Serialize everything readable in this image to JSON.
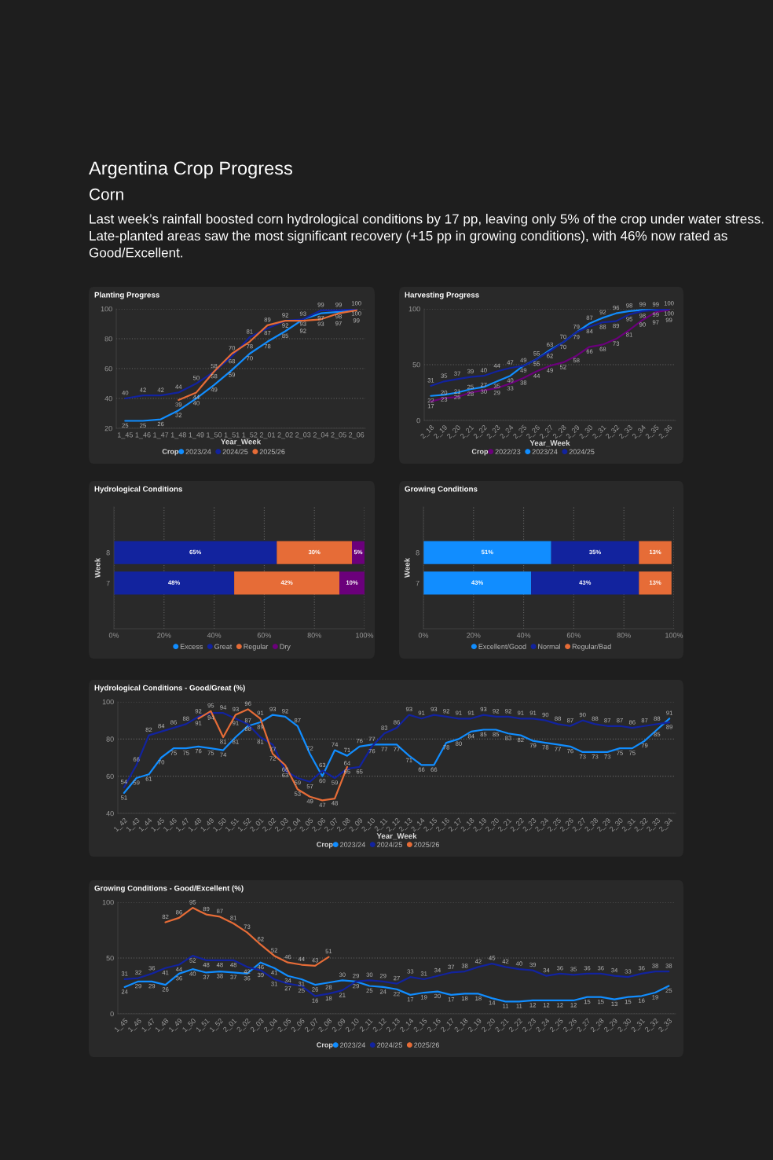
{
  "chart_data": [
    {
      "type": "other",
      "title": "Argentina Crop Progress",
      "subtitle": "Corn",
      "annotations": [
        "Last week’s rainfall boosted corn hydrological conditions by 17 pp, leaving only 5% of the crop under water stress. Late-planted areas saw the most significant recovery (+15 pp in growing conditions), with 46% now rated as Good/Excellent."
      ]
    },
    {
      "type": "line",
      "title": "Planting Progress",
      "xlabel": "Year_Week",
      "legend_title": "Crop",
      "legend": "bottom",
      "grid": "y",
      "data_labels": true,
      "ylim": [
        20,
        100
      ],
      "yticks": [
        20,
        40,
        60,
        80,
        100
      ],
      "categories": [
        "1_45",
        "1_46",
        "1_47",
        "1_48",
        "1_49",
        "1_50",
        "1_51",
        "1_52",
        "2_01",
        "2_02",
        "2_03",
        "2_04",
        "2_05",
        "2_06"
      ],
      "series": [
        {
          "name": "2023/24",
          "color": "#118dff",
          "values": [
            25,
            25,
            26,
            32,
            40,
            49,
            59,
            70,
            78,
            85,
            93,
            97,
            98,
            100
          ]
        },
        {
          "name": "2024/25",
          "color": "#12239e",
          "values": [
            40,
            42,
            42,
            44,
            50,
            58,
            68,
            81,
            87,
            92,
            93,
            99,
            99,
            100
          ]
        },
        {
          "name": "2025/26",
          "color": "#e66c37",
          "values": [
            null,
            null,
            null,
            39,
            44,
            58,
            70,
            78,
            89,
            92,
            92,
            93,
            97,
            99
          ]
        }
      ]
    },
    {
      "type": "line",
      "title": "Harvesting Progress",
      "xlabel": "Year_Week",
      "legend_title": "Crop",
      "legend": "bottom",
      "grid": "y",
      "data_labels": true,
      "ylim": [
        0,
        100
      ],
      "yticks": [
        0,
        50,
        100
      ],
      "categories": [
        "2_18",
        "2_19",
        "2_20",
        "2_21",
        "2_22",
        "2_23",
        "2_24",
        "2_25",
        "2_26",
        "2_27",
        "2_28",
        "2_29",
        "2_30",
        "2_31",
        "2_32",
        "2_33",
        "2_34",
        "2_35",
        "2_36"
      ],
      "series": [
        {
          "name": "2022/23",
          "color": "#6b007b",
          "values": [
            17,
            20,
            21,
            25,
            27,
            29,
            33,
            38,
            44,
            49,
            52,
            58,
            66,
            68,
            73,
            81,
            90,
            97,
            99
          ]
        },
        {
          "name": "2023/24",
          "color": "#118dff",
          "values": [
            22,
            23,
            25,
            28,
            30,
            35,
            40,
            49,
            55,
            63,
            70,
            79,
            87,
            92,
            96,
            98,
            99,
            99,
            100
          ]
        },
        {
          "name": "2024/25",
          "color": "#12239e",
          "values": [
            31,
            35,
            37,
            39,
            40,
            44,
            47,
            49,
            55,
            62,
            70,
            79,
            84,
            88,
            89,
            95,
            98,
            99,
            100
          ]
        }
      ]
    },
    {
      "type": "bar",
      "title": "Hydrological Conditions",
      "orientation": "horizontal",
      "stacked": true,
      "ylabel": "Week",
      "legend": "bottom",
      "grid": "x",
      "categories": [
        "8",
        "7"
      ],
      "xlim": [
        0,
        100
      ],
      "xticks": [
        {
          "value": 0,
          "label": "0%"
        },
        {
          "value": 20,
          "label": "20%"
        },
        {
          "value": 40,
          "label": "40%"
        },
        {
          "value": 60,
          "label": "60%"
        },
        {
          "value": 80,
          "label": "80%"
        },
        {
          "value": 100,
          "label": "100%"
        }
      ],
      "series": [
        {
          "name": "Excess",
          "color": "#118dff",
          "values": [
            0,
            0
          ],
          "value_labels": [
            null,
            null
          ]
        },
        {
          "name": "Great",
          "color": "#12239e",
          "values": [
            65,
            48
          ],
          "value_labels": [
            "65%",
            "48%"
          ]
        },
        {
          "name": "Regular",
          "color": "#e66c37",
          "values": [
            30,
            42
          ],
          "value_labels": [
            "30%",
            "42%"
          ]
        },
        {
          "name": "Dry",
          "color": "#6b007b",
          "values": [
            5,
            10
          ],
          "value_labels": [
            "5%",
            "10%"
          ]
        }
      ]
    },
    {
      "type": "bar",
      "title": "Growing Conditions",
      "orientation": "horizontal",
      "stacked": true,
      "ylabel": "Week",
      "legend": "bottom",
      "grid": "x",
      "categories": [
        "8",
        "7"
      ],
      "xlim": [
        0,
        100
      ],
      "xticks": [
        {
          "value": 0,
          "label": "0%"
        },
        {
          "value": 20,
          "label": "20%"
        },
        {
          "value": 40,
          "label": "40%"
        },
        {
          "value": 60,
          "label": "60%"
        },
        {
          "value": 80,
          "label": "80%"
        },
        {
          "value": 100,
          "label": "100%"
        }
      ],
      "series": [
        {
          "name": "Excellent/Good",
          "color": "#118dff",
          "values": [
            51,
            43
          ],
          "value_labels": [
            "51%",
            "43%"
          ]
        },
        {
          "name": "Normal",
          "color": "#12239e",
          "values": [
            35,
            43
          ],
          "value_labels": [
            "35%",
            "43%"
          ]
        },
        {
          "name": "Regular/Bad",
          "color": "#e66c37",
          "values": [
            13,
            13
          ],
          "value_labels": [
            "13%",
            "13%"
          ]
        }
      ]
    },
    {
      "type": "line",
      "title": "Hydrological Conditions - Good/Great (%)",
      "xlabel": "Year_Week",
      "legend_title": "Crop",
      "legend": "bottom",
      "grid": "y",
      "data_labels": true,
      "ylim": [
        40,
        100
      ],
      "yticks": [
        40,
        60,
        80,
        100
      ],
      "categories": [
        "1_42",
        "1_43",
        "1_44",
        "1_45",
        "1_46",
        "1_47",
        "1_48",
        "1_49",
        "1_50",
        "1_51",
        "1_52",
        "2_01",
        "2_02",
        "2_03",
        "2_04",
        "2_05",
        "2_06",
        "2_07",
        "2_08",
        "2_09",
        "2_10",
        "2_11",
        "2_12",
        "2_13",
        "2_14",
        "2_15",
        "2_16",
        "2_17",
        "2_18",
        "2_19",
        "2_20",
        "2_21",
        "2_22",
        "2_23",
        "2_24",
        "2_25",
        "2_26",
        "2_27",
        "2_28",
        "2_29",
        "2_30",
        "2_31",
        "2_32",
        "2_33",
        "2_34"
      ],
      "series": [
        {
          "name": "2023/24",
          "color": "#118dff",
          "values": [
            51,
            59,
            61,
            70,
            75,
            75,
            76,
            75,
            74,
            81,
            87,
            89,
            93,
            92,
            87,
            72,
            60,
            74,
            71,
            76,
            77,
            77,
            77,
            71,
            66,
            66,
            78,
            80,
            84,
            85,
            85,
            83,
            82,
            79,
            78,
            77,
            76,
            73,
            73,
            73,
            75,
            75,
            79,
            85,
            91
          ]
        },
        {
          "name": "2024/25",
          "color": "#12239e",
          "values": [
            54,
            66,
            82,
            84,
            86,
            88,
            92,
            94,
            94,
            91,
            88,
            81,
            77,
            63,
            59,
            57,
            63,
            59,
            64,
            65,
            76,
            83,
            86,
            93,
            91,
            93,
            92,
            91,
            91,
            93,
            92,
            92,
            91,
            91,
            90,
            88,
            87,
            90,
            88,
            87,
            87,
            86,
            87,
            88,
            89
          ]
        },
        {
          "name": "2025/26",
          "color": "#e66c37",
          "values": [
            null,
            null,
            null,
            null,
            null,
            null,
            91,
            95,
            81,
            93,
            96,
            91,
            72,
            66,
            53,
            49,
            47,
            48,
            65,
            null,
            null,
            null,
            null,
            null,
            null,
            null,
            null,
            null,
            null,
            null,
            null,
            null,
            null,
            null,
            null,
            null,
            null,
            null,
            null,
            null,
            null,
            null,
            null,
            null,
            null
          ]
        }
      ]
    },
    {
      "type": "line",
      "title": "Growing Conditions - Good/Excellent (%)",
      "legend_title": "Crop",
      "legend": "bottom",
      "grid": "y",
      "data_labels": true,
      "ylim": [
        0,
        100
      ],
      "yticks": [
        0,
        50,
        100
      ],
      "categories": [
        "1_45",
        "1_46",
        "1_47",
        "1_48",
        "1_49",
        "1_50",
        "1_51",
        "1_52",
        "2_01",
        "2_02",
        "2_03",
        "2_04",
        "2_05",
        "2_06",
        "2_07",
        "2_08",
        "2_09",
        "2_10",
        "2_11",
        "2_12",
        "2_13",
        "2_14",
        "2_15",
        "2_16",
        "2_17",
        "2_18",
        "2_19",
        "2_20",
        "2_21",
        "2_22",
        "2_23",
        "2_24",
        "2_25",
        "2_26",
        "2_27",
        "2_28",
        "2_29",
        "2_30",
        "2_31",
        "2_32",
        "2_33"
      ],
      "series": [
        {
          "name": "2023/24",
          "color": "#118dff",
          "values": [
            24,
            29,
            29,
            26,
            36,
            40,
            37,
            38,
            37,
            36,
            46,
            41,
            34,
            31,
            26,
            28,
            30,
            29,
            25,
            24,
            22,
            17,
            19,
            20,
            17,
            18,
            18,
            14,
            11,
            11,
            12,
            12,
            12,
            12,
            15,
            15,
            13,
            15,
            16,
            19,
            25
          ]
        },
        {
          "name": "2024/25",
          "color": "#12239e",
          "values": [
            31,
            32,
            36,
            41,
            44,
            52,
            48,
            48,
            48,
            42,
            39,
            31,
            27,
            25,
            16,
            18,
            21,
            29,
            30,
            29,
            27,
            33,
            31,
            34,
            37,
            38,
            42,
            45,
            42,
            40,
            39,
            34,
            36,
            35,
            36,
            36,
            34,
            33,
            36,
            38,
            38
          ]
        },
        {
          "name": "2025/26",
          "color": "#e66c37",
          "values": [
            null,
            null,
            null,
            82,
            86,
            95,
            89,
            87,
            81,
            73,
            62,
            52,
            46,
            44,
            43,
            51,
            null,
            null,
            null,
            null,
            null,
            null,
            null,
            null,
            null,
            null,
            null,
            null,
            null,
            null,
            null,
            null,
            null,
            null,
            null,
            null,
            null,
            null,
            null,
            null,
            null
          ]
        }
      ]
    }
  ]
}
